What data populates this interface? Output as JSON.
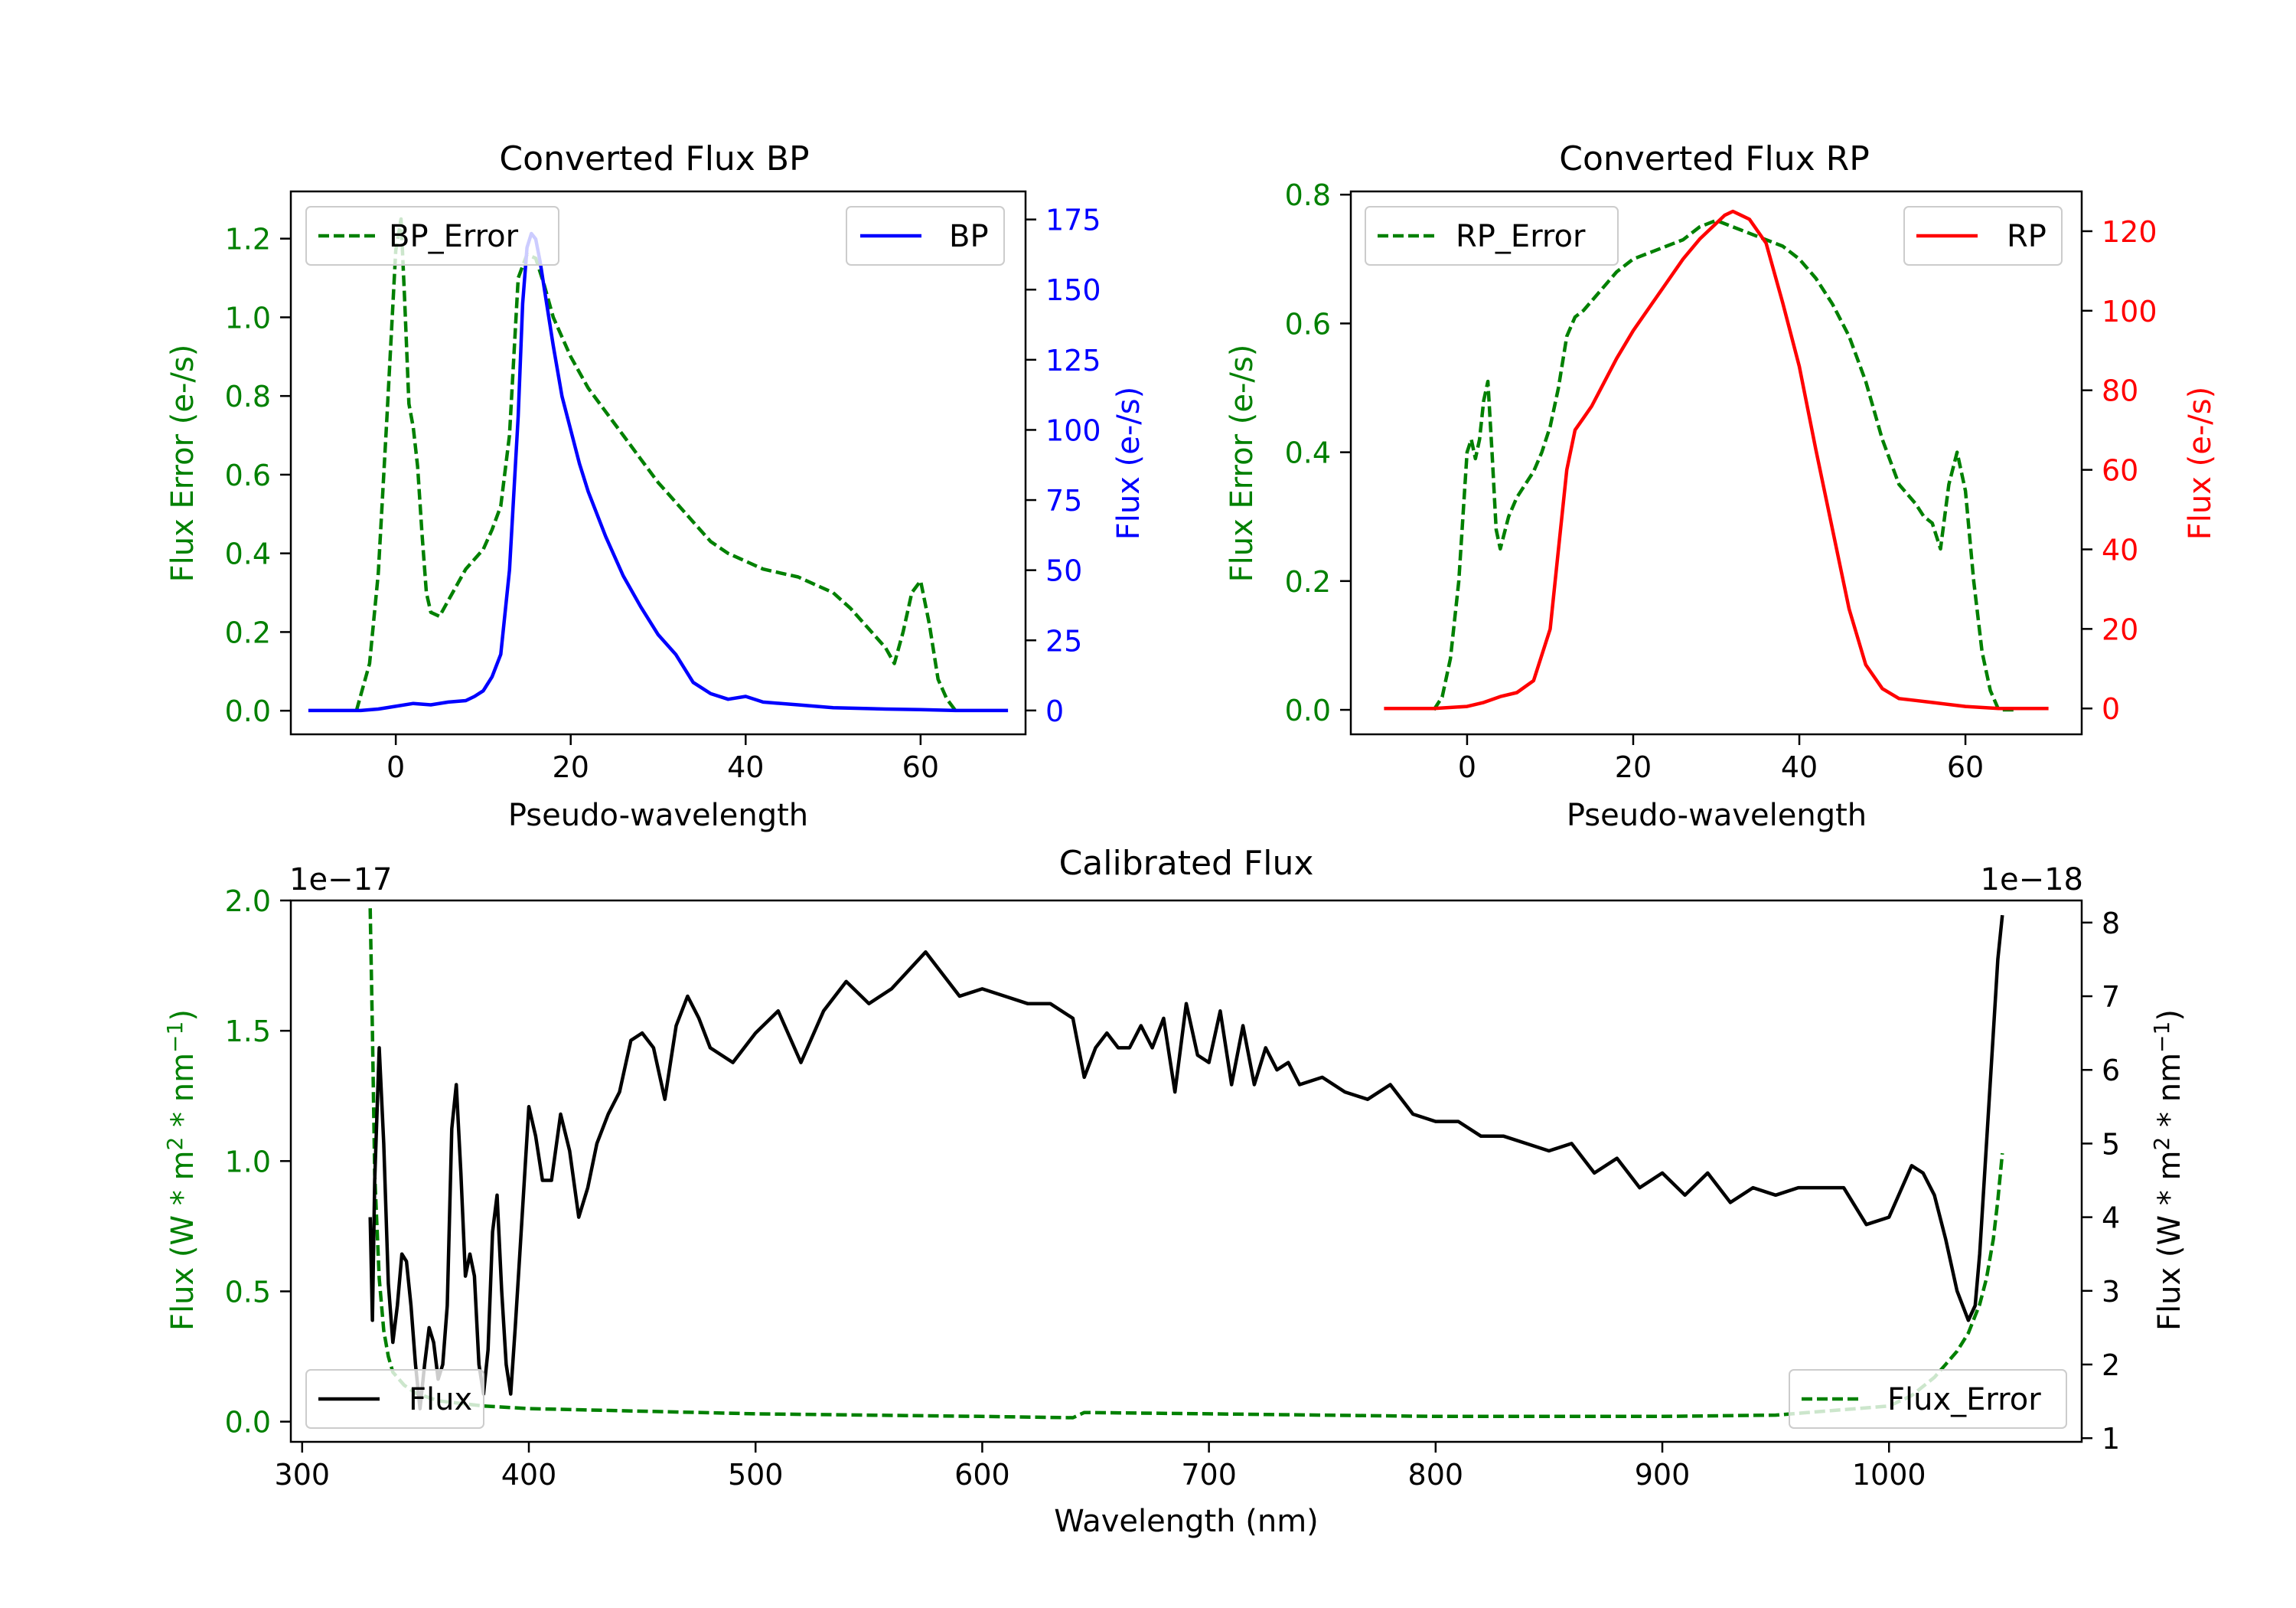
{
  "colors": {
    "error": "#008000",
    "bp": "#0000ff",
    "rp": "#ff0000",
    "flux": "#000000",
    "axis": "#000000"
  },
  "chart_data": [
    {
      "id": "bp",
      "type": "line",
      "title": "Converted Flux BP",
      "xlabel": "Pseudo-wavelength",
      "ylabel_left": "Flux Error (e-/s)",
      "ylabel_right": "Flux (e-/s)",
      "xlim": [
        -12,
        72
      ],
      "ylim_left": [
        -0.06,
        1.32
      ],
      "ylim_right": [
        -8.5,
        185
      ],
      "xticks": [
        0,
        20,
        40,
        60
      ],
      "xtick_labels": [
        "0",
        "20",
        "40",
        "60"
      ],
      "yticks_left": [
        0.0,
        0.2,
        0.4,
        0.6,
        0.8,
        1.0,
        1.2
      ],
      "ytick_labels_left": [
        "0.0",
        "0.2",
        "0.4",
        "0.6",
        "0.8",
        "1.0",
        "1.2"
      ],
      "yticks_right": [
        0,
        25,
        50,
        75,
        100,
        125,
        150,
        175
      ],
      "ytick_labels_right": [
        "0",
        "25",
        "50",
        "75",
        "100",
        "125",
        "150",
        "175"
      ],
      "legend_left": {
        "label": "BP_Error",
        "position": "upper left"
      },
      "legend_right": {
        "label": "BP",
        "position": "upper right"
      },
      "error_series": {
        "name": "BP_Error",
        "style": "dashed",
        "x": [
          -4.5,
          -3,
          -2,
          -1,
          0,
          0.6,
          1,
          1.5,
          2,
          2.5,
          3,
          3.5,
          4,
          5,
          6,
          8,
          10,
          11,
          12,
          13,
          14,
          15,
          16,
          17,
          18,
          20,
          22,
          24,
          26,
          28,
          30,
          32,
          34,
          36,
          38,
          40,
          42,
          44,
          46,
          48,
          50,
          52,
          54,
          56,
          57,
          58,
          59,
          60,
          61,
          62,
          63,
          64
        ],
        "y": [
          0.0,
          0.12,
          0.35,
          0.75,
          1.17,
          1.25,
          1.05,
          0.78,
          0.72,
          0.62,
          0.45,
          0.3,
          0.25,
          0.24,
          0.28,
          0.36,
          0.41,
          0.46,
          0.52,
          0.7,
          1.1,
          1.16,
          1.15,
          1.08,
          1.0,
          0.9,
          0.82,
          0.76,
          0.7,
          0.64,
          0.58,
          0.53,
          0.48,
          0.43,
          0.4,
          0.38,
          0.36,
          0.35,
          0.34,
          0.32,
          0.3,
          0.26,
          0.21,
          0.16,
          0.12,
          0.2,
          0.3,
          0.33,
          0.22,
          0.08,
          0.03,
          0.0
        ]
      },
      "flux_series": {
        "name": "BP",
        "style": "solid",
        "x": [
          -10,
          -4,
          -2,
          0,
          2,
          4,
          6,
          8,
          9,
          10,
          11,
          12,
          13,
          14,
          14.5,
          15,
          15.5,
          16,
          16.5,
          17,
          18,
          19,
          20,
          21,
          22,
          24,
          26,
          28,
          30,
          32,
          34,
          36,
          38,
          40,
          42,
          46,
          50,
          56,
          60,
          64,
          70
        ],
        "y": [
          0,
          0,
          0.5,
          1.5,
          2.5,
          2,
          3,
          3.5,
          5,
          7,
          12,
          20,
          50,
          105,
          145,
          165,
          170,
          168,
          160,
          150,
          130,
          112,
          100,
          88,
          78,
          62,
          48,
          37,
          27,
          20,
          10,
          6,
          4,
          5,
          3,
          2,
          1,
          0.5,
          0.3,
          0,
          0
        ]
      }
    },
    {
      "id": "rp",
      "type": "line",
      "title": "Converted Flux RP",
      "xlabel": "Pseudo-wavelength",
      "ylabel_left": "Flux Error (e-/s)",
      "ylabel_right": "Flux (e-/s)",
      "xlim": [
        -14,
        74
      ],
      "ylim_left": [
        -0.038,
        0.805
      ],
      "ylim_right": [
        -6.5,
        130
      ],
      "xticks": [
        0,
        20,
        40,
        60
      ],
      "xtick_labels": [
        "0",
        "20",
        "40",
        "60"
      ],
      "yticks_left": [
        0.0,
        0.2,
        0.4,
        0.6,
        0.8
      ],
      "ytick_labels_left": [
        "0.0",
        "0.2",
        "0.4",
        "0.6",
        "0.8"
      ],
      "yticks_right": [
        0,
        20,
        40,
        60,
        80,
        100,
        120
      ],
      "ytick_labels_right": [
        "0",
        "20",
        "40",
        "60",
        "80",
        "100",
        "120"
      ],
      "legend_left": {
        "label": "RP_Error",
        "position": "upper left"
      },
      "legend_right": {
        "label": "RP",
        "position": "upper right"
      },
      "error_series": {
        "name": "RP_Error",
        "style": "dashed",
        "x": [
          -4,
          -3,
          -2,
          -1,
          0,
          0.5,
          1,
          1.5,
          2,
          2.5,
          3,
          3.5,
          4,
          5,
          6,
          7,
          8,
          9,
          10,
          11,
          12,
          13,
          14,
          16,
          18,
          20,
          22,
          24,
          26,
          28,
          30,
          32,
          34,
          36,
          38,
          40,
          42,
          44,
          46,
          48,
          50,
          52,
          54,
          55,
          56,
          57,
          58,
          59,
          60,
          61,
          62,
          63,
          64,
          65,
          66
        ],
        "y": [
          0.0,
          0.02,
          0.08,
          0.2,
          0.4,
          0.42,
          0.39,
          0.42,
          0.48,
          0.51,
          0.4,
          0.28,
          0.25,
          0.3,
          0.33,
          0.35,
          0.37,
          0.4,
          0.44,
          0.5,
          0.58,
          0.61,
          0.62,
          0.65,
          0.68,
          0.7,
          0.71,
          0.72,
          0.73,
          0.75,
          0.76,
          0.75,
          0.74,
          0.73,
          0.72,
          0.7,
          0.67,
          0.63,
          0.58,
          0.51,
          0.42,
          0.35,
          0.32,
          0.3,
          0.29,
          0.25,
          0.35,
          0.4,
          0.34,
          0.2,
          0.09,
          0.03,
          0.0,
          0.0,
          0.0
        ]
      },
      "flux_series": {
        "name": "RP",
        "style": "solid",
        "x": [
          -10,
          -4,
          0,
          2,
          4,
          6,
          8,
          10,
          11,
          12,
          13,
          14,
          15,
          16,
          18,
          20,
          22,
          24,
          26,
          28,
          30,
          31,
          32,
          33,
          34,
          36,
          38,
          40,
          42,
          44,
          46,
          48,
          50,
          52,
          54,
          56,
          60,
          64,
          70
        ],
        "y": [
          0,
          0,
          0.5,
          1.5,
          3,
          4,
          7,
          20,
          40,
          60,
          70,
          73,
          76,
          80,
          88,
          95,
          101,
          107,
          113,
          118,
          122,
          124,
          125,
          124,
          123,
          117,
          102,
          86,
          65,
          45,
          25,
          11,
          5,
          2.5,
          2,
          1.5,
          0.5,
          0,
          0
        ]
      }
    },
    {
      "id": "cal",
      "type": "line",
      "title": "Calibrated Flux",
      "xlabel": "Wavelength (nm)",
      "ylabel_left": "Flux (W * m^2 * nm^-1)",
      "ylabel_right": "Flux (W * m^2 * nm^-1)",
      "offset_left": "1e−17",
      "offset_right": "1e−18",
      "xlim": [
        295,
        1085
      ],
      "ylim_left": [
        -0.0775,
        2.0
      ],
      "ylim_right": [
        0.95,
        8.3
      ],
      "xticks": [
        300,
        400,
        500,
        600,
        700,
        800,
        900,
        1000
      ],
      "xtick_labels": [
        "300",
        "400",
        "500",
        "600",
        "700",
        "800",
        "900",
        "1000"
      ],
      "yticks_left": [
        0.0,
        0.5,
        1.0,
        1.5,
        2.0
      ],
      "ytick_labels_left": [
        "0.0",
        "0.5",
        "1.0",
        "1.5",
        "2.0"
      ],
      "yticks_right": [
        1,
        2,
        3,
        4,
        5,
        6,
        7,
        8
      ],
      "ytick_labels_right": [
        "1",
        "2",
        "3",
        "4",
        "5",
        "6",
        "7",
        "8"
      ],
      "legend_left": {
        "label": "Flux",
        "position": "lower left"
      },
      "legend_right": {
        "label": "Flux_Error",
        "position": "lower right"
      },
      "error_series": {
        "name": "Flux_Error",
        "style": "dashed",
        "x": [
          330,
          331,
          332,
          334,
          336,
          338,
          340,
          345,
          350,
          360,
          380,
          400,
          450,
          500,
          600,
          640,
          645,
          700,
          800,
          900,
          950,
          1000,
          1010,
          1020,
          1025,
          1030,
          1035,
          1040,
          1043,
          1046,
          1048,
          1050
        ],
        "y": [
          1.97,
          1.5,
          0.95,
          0.55,
          0.35,
          0.25,
          0.19,
          0.14,
          0.11,
          0.08,
          0.06,
          0.05,
          0.04,
          0.03,
          0.02,
          0.015,
          0.035,
          0.03,
          0.02,
          0.02,
          0.025,
          0.06,
          0.1,
          0.17,
          0.22,
          0.27,
          0.34,
          0.45,
          0.55,
          0.7,
          0.85,
          1.03
        ]
      },
      "flux_series": {
        "name": "Flux",
        "style": "solid",
        "x": [
          330,
          331,
          332,
          334,
          336,
          338,
          340,
          342,
          344,
          346,
          348,
          350,
          352,
          354,
          356,
          358,
          360,
          362,
          364,
          366,
          368,
          370,
          372,
          374,
          376,
          378,
          380,
          382,
          384,
          386,
          388,
          390,
          392,
          394,
          396,
          398,
          400,
          403,
          406,
          410,
          414,
          418,
          422,
          426,
          430,
          435,
          440,
          445,
          450,
          455,
          460,
          465,
          470,
          475,
          480,
          490,
          500,
          510,
          520,
          530,
          540,
          550,
          560,
          575,
          590,
          600,
          610,
          620,
          630,
          640,
          645,
          650,
          655,
          660,
          665,
          670,
          675,
          680,
          685,
          690,
          695,
          700,
          705,
          710,
          715,
          720,
          725,
          730,
          735,
          740,
          750,
          760,
          770,
          780,
          790,
          800,
          810,
          820,
          830,
          840,
          850,
          860,
          870,
          880,
          890,
          900,
          910,
          920,
          930,
          940,
          950,
          960,
          970,
          980,
          990,
          1000,
          1010,
          1015,
          1020,
          1025,
          1030,
          1035,
          1038,
          1040,
          1043,
          1046,
          1048,
          1050
        ],
        "y": [
          4.0,
          2.6,
          4.5,
          6.3,
          5.0,
          3.1,
          2.3,
          2.8,
          3.5,
          3.4,
          2.8,
          2.0,
          1.4,
          2.0,
          2.5,
          2.3,
          1.8,
          2.0,
          2.8,
          5.2,
          5.8,
          4.6,
          3.2,
          3.5,
          3.2,
          2.0,
          1.6,
          2.2,
          3.8,
          4.3,
          3.0,
          2.0,
          1.6,
          2.5,
          3.5,
          4.5,
          5.5,
          5.1,
          4.5,
          4.5,
          5.4,
          4.9,
          4.0,
          4.4,
          5.0,
          5.4,
          5.7,
          6.4,
          6.5,
          6.3,
          5.6,
          6.6,
          7.0,
          6.7,
          6.3,
          6.1,
          6.5,
          6.8,
          6.1,
          6.8,
          7.2,
          6.9,
          7.1,
          7.6,
          7.0,
          7.1,
          7.0,
          6.9,
          6.9,
          6.7,
          5.9,
          6.3,
          6.5,
          6.3,
          6.3,
          6.6,
          6.3,
          6.7,
          5.7,
          6.9,
          6.2,
          6.1,
          6.8,
          5.8,
          6.6,
          5.8,
          6.3,
          6.0,
          6.1,
          5.8,
          5.9,
          5.7,
          5.6,
          5.8,
          5.4,
          5.3,
          5.3,
          5.1,
          5.1,
          5.0,
          4.9,
          5.0,
          4.6,
          4.8,
          4.4,
          4.6,
          4.3,
          4.6,
          4.2,
          4.4,
          4.3,
          4.4,
          4.4,
          4.4,
          3.9,
          4.0,
          4.7,
          4.6,
          4.3,
          3.7,
          3.0,
          2.6,
          2.8,
          3.5,
          5.0,
          6.5,
          7.5,
          8.1
        ]
      }
    }
  ]
}
